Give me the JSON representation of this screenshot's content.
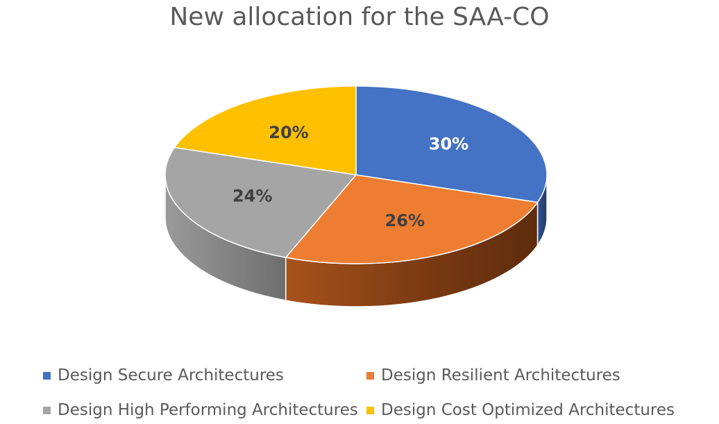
{
  "chart_data": {
    "type": "pie",
    "title": "New allocation for the SAA-CO",
    "categories": [
      "Design Secure Architectures",
      "Design Resilient Architectures",
      "Design High Performing Architectures",
      "Design Cost Optimized Architectures"
    ],
    "values": [
      30,
      26,
      24,
      20
    ],
    "data_labels": [
      "30%",
      "26%",
      "24%",
      "20%"
    ],
    "colors": [
      "#4472C4",
      "#ED7D31",
      "#A5A5A5",
      "#FFC000"
    ],
    "label_colors": [
      "#FFFFFF",
      "#404040",
      "#404040",
      "#404040"
    ],
    "style": "3d-pie",
    "legend_position": "bottom"
  }
}
